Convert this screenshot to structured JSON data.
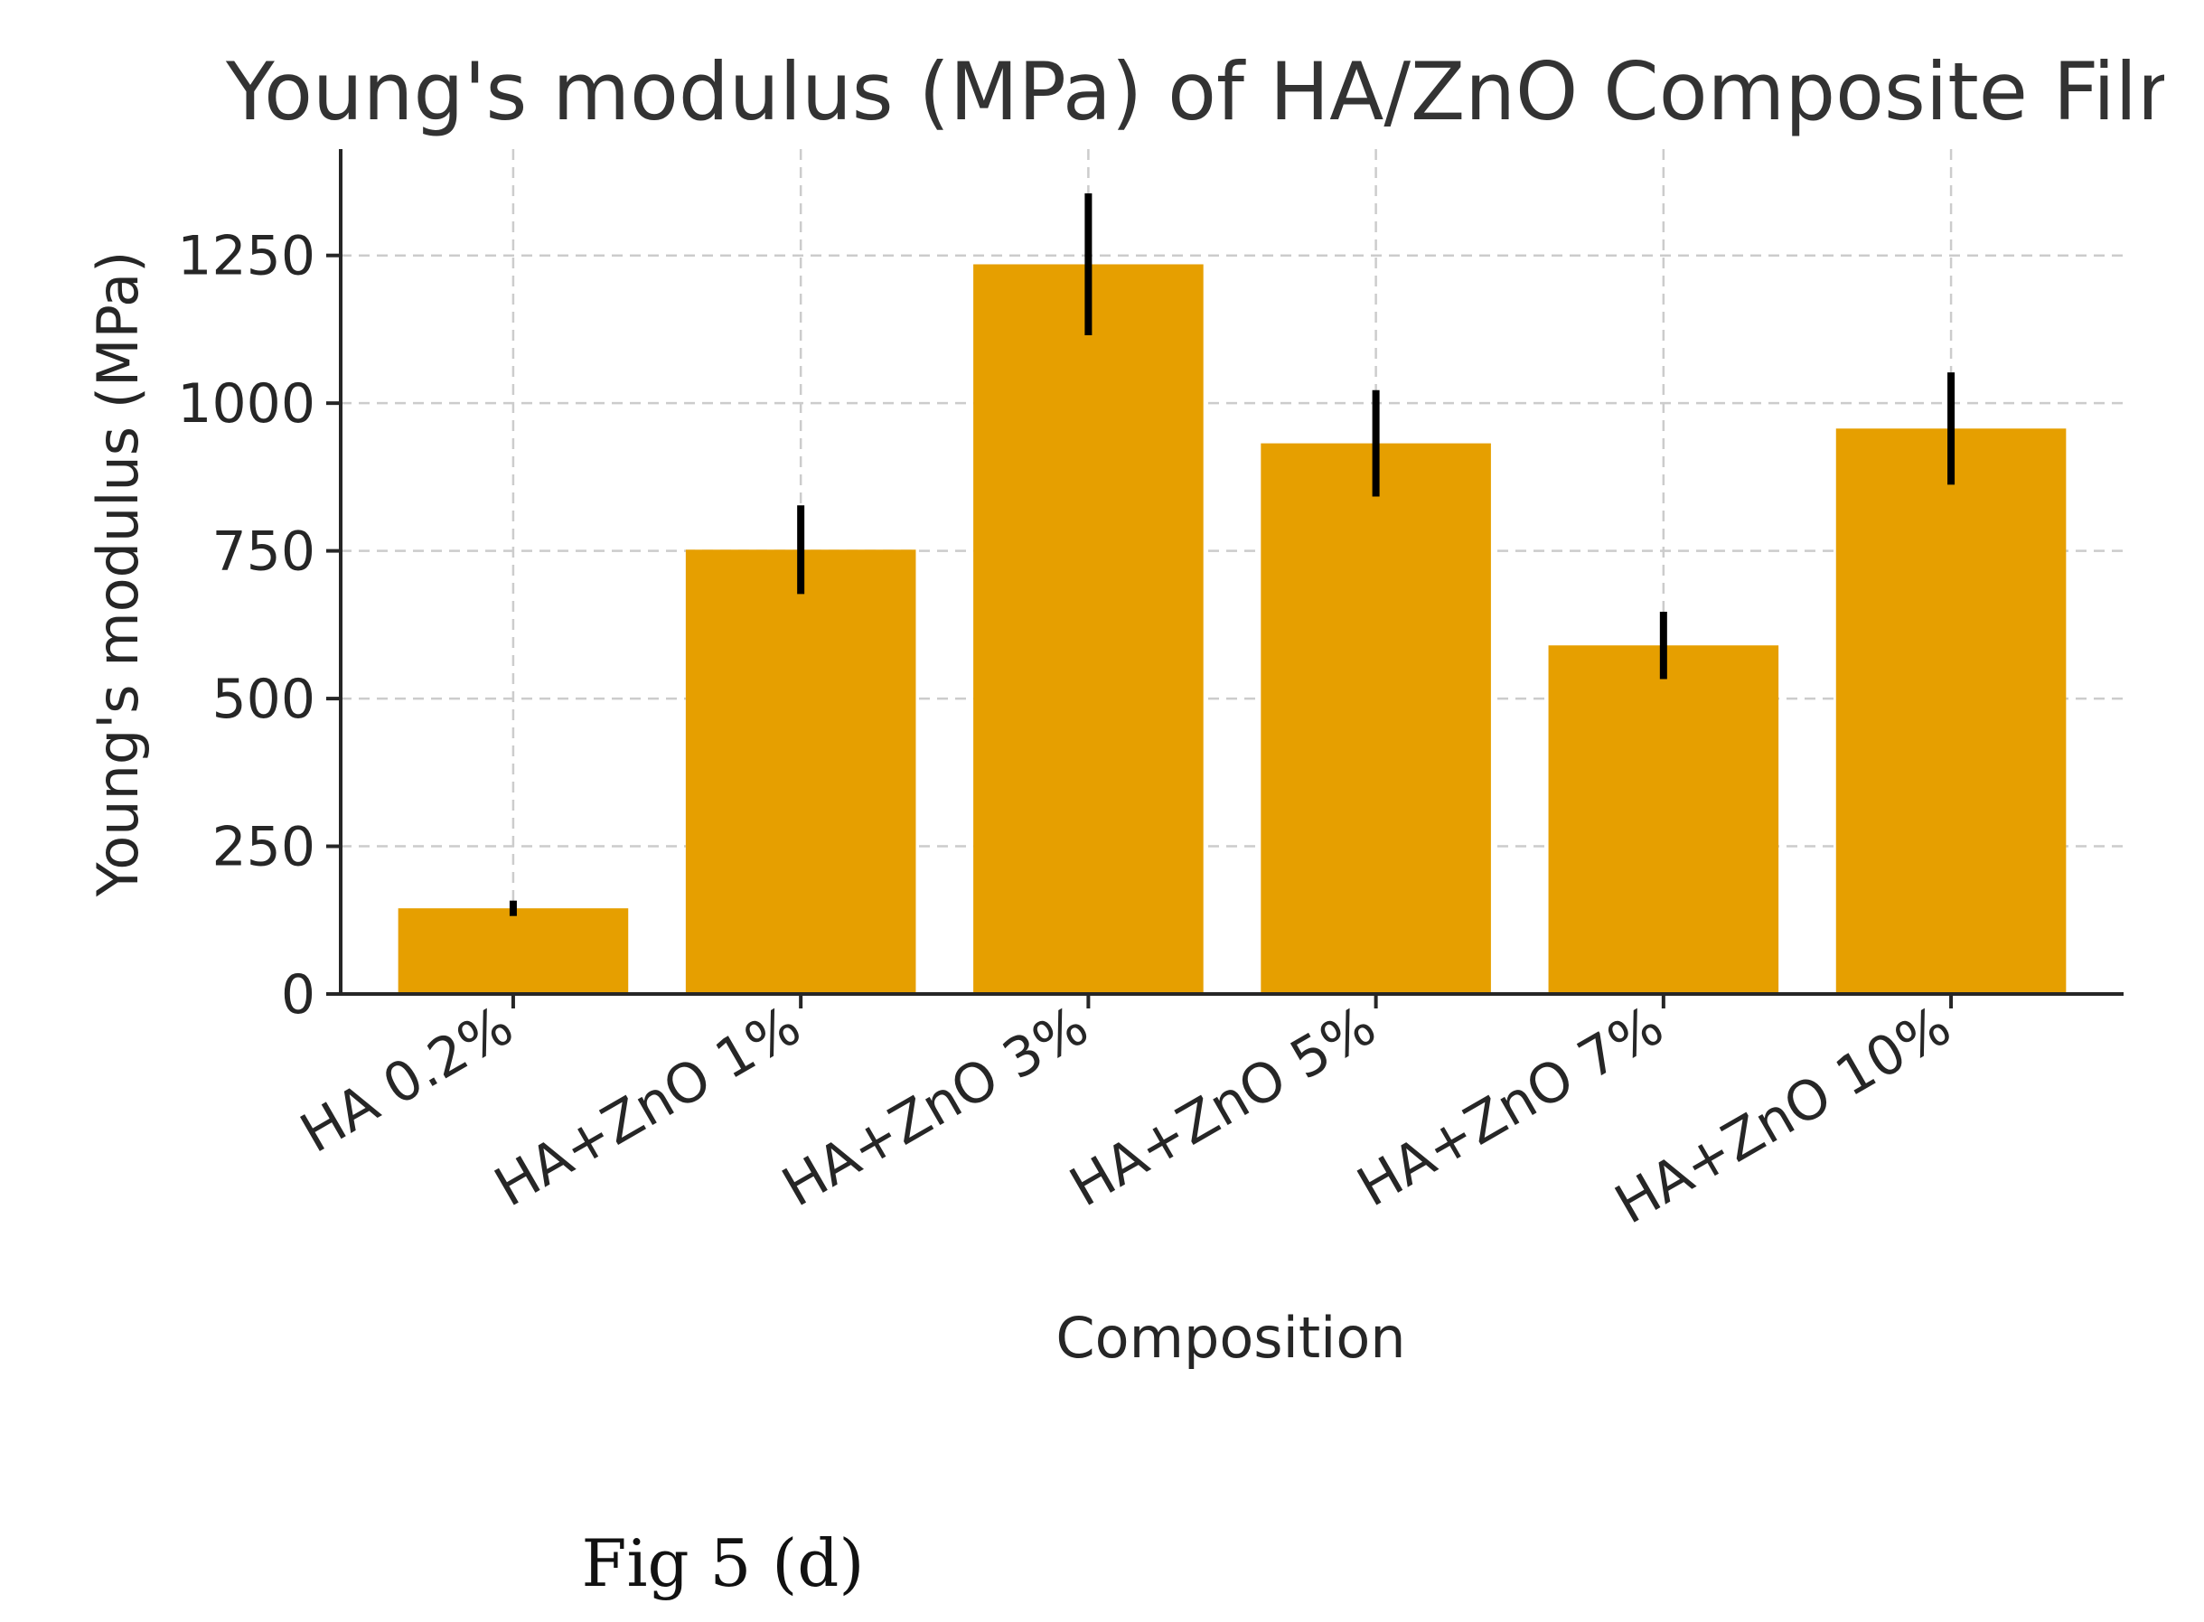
{
  "chart_data": {
    "type": "bar",
    "title": "Young's modulus (MPa) of HA/ZnO Composite Films",
    "xlabel": "Composition",
    "ylabel": "Young's modulus (MPa)",
    "categories": [
      "HA 0.2%",
      "HA+ZnO 1%",
      "HA+ZnO 3%",
      "HA+ZnO 5%",
      "HA+ZnO 7%",
      "HA+ZnO 10%"
    ],
    "series": [
      {
        "values": [
          145,
          752,
          1235,
          932,
          590,
          957
        ],
        "error": [
          13,
          75,
          120,
          90,
          57,
          95
        ],
        "color": "#E69F00"
      }
    ],
    "yticks": [
      0,
      250,
      500,
      750,
      1000,
      1250
    ],
    "ytick_labels": [
      "0",
      "250",
      "500",
      "750",
      "1000",
      "1250"
    ],
    "ylim": [
      0,
      1430
    ],
    "grid": true,
    "legend": "none"
  },
  "caption": "Fig 5 (d)"
}
